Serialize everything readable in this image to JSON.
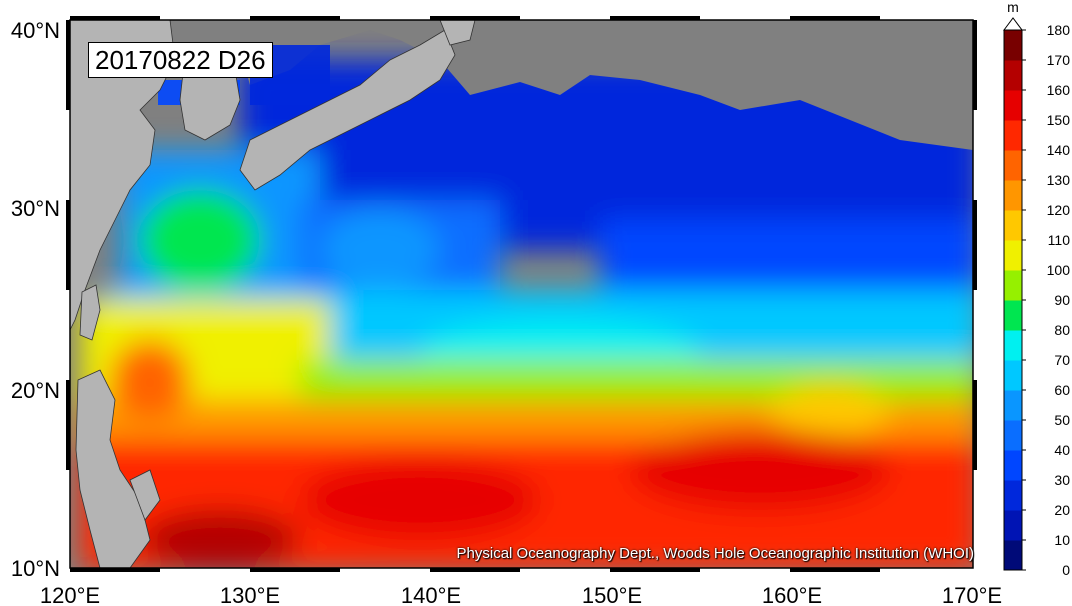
{
  "map": {
    "date_label": "20170822 D26",
    "credit": "Physical Oceanography Dept., Woods Hole Oceanographic Institution (WHOI)",
    "lon_ticks": [
      "120°E",
      "130°E",
      "140°E",
      "150°E",
      "160°E",
      "170°E"
    ],
    "lat_ticks": [
      "10°N",
      "20°N",
      "30°N",
      "40°N"
    ],
    "lon_range": [
      120,
      170
    ],
    "lat_range": [
      10,
      40
    ]
  },
  "colorbar": {
    "unit": "m",
    "ticks": [
      "0",
      "10",
      "20",
      "30",
      "40",
      "50",
      "60",
      "70",
      "80",
      "90",
      "100",
      "110",
      "120",
      "130",
      "140",
      "150",
      "160",
      "170",
      "180"
    ],
    "colors": [
      "#000a78",
      "#0014b4",
      "#0028dc",
      "#0046ff",
      "#0a6eff",
      "#0a96ff",
      "#00c8ff",
      "#00f0f0",
      "#00e650",
      "#96f000",
      "#f0f000",
      "#ffc800",
      "#ff9600",
      "#ff6400",
      "#ff2800",
      "#e60000",
      "#b40000",
      "#780000"
    ]
  },
  "land": {
    "land_color": "#b4b4b4",
    "mask_color": "#808080"
  }
}
